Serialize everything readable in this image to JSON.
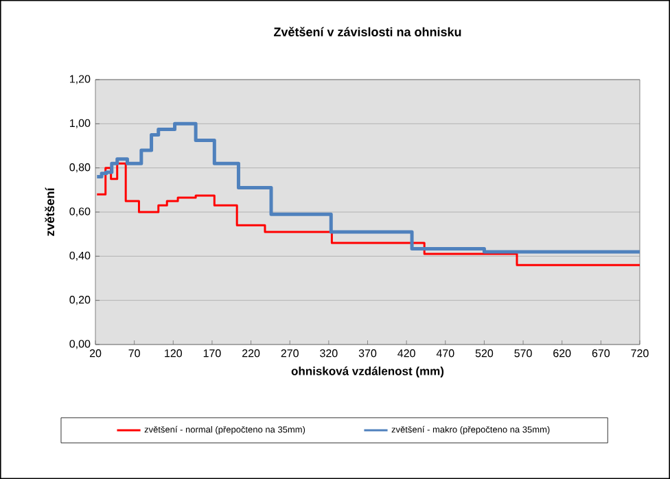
{
  "chart_data": {
    "type": "step",
    "title": "Zvětšení v závislosti na ohnisku",
    "xlabel": "ohnisková vzdálenost (mm)",
    "ylabel": "zvětšení",
    "xlim": [
      20,
      720
    ],
    "xticks": [
      20,
      70,
      120,
      170,
      220,
      270,
      320,
      370,
      420,
      470,
      520,
      570,
      620,
      670,
      720
    ],
    "ylim": [
      0,
      1.2
    ],
    "yticks": [
      {
        "value": 0,
        "label": "0,00"
      },
      {
        "value": 0.2,
        "label": "0,20"
      },
      {
        "value": 0.4,
        "label": "0,40"
      },
      {
        "value": 0.6,
        "label": "0,60"
      },
      {
        "value": 0.8,
        "label": "0,80"
      },
      {
        "value": 1.0,
        "label": "1,00"
      },
      {
        "value": 1.2,
        "label": "1,20"
      }
    ],
    "grid": "y",
    "legend": "bottom",
    "line_style": "solid",
    "marker": "none",
    "series": [
      {
        "name": "zvětšení - normal  (přepočteno  na 35mm)",
        "color": "#ff0000",
        "x": [
          22,
          33,
          40,
          48,
          59,
          76,
          101,
          112,
          126,
          149,
          173,
          202,
          238,
          324,
          443,
          562,
          720
        ],
        "values": [
          0.68,
          0.8,
          0.75,
          0.82,
          0.65,
          0.6,
          0.63,
          0.65,
          0.665,
          0.675,
          0.63,
          0.54,
          0.51,
          0.46,
          0.41,
          0.36,
          0.36
        ]
      },
      {
        "name": "zvětšení - makro (přepočteno  na 35mm)",
        "color": "#4f81bd",
        "x": [
          22,
          28,
          34,
          41,
          48,
          61,
          79,
          92,
          101,
          122,
          149,
          173,
          204,
          246,
          323,
          427,
          520,
          720
        ],
        "values": [
          0.76,
          0.775,
          0.78,
          0.82,
          0.84,
          0.82,
          0.88,
          0.95,
          0.975,
          1.0,
          0.925,
          0.82,
          0.71,
          0.59,
          0.51,
          0.434,
          0.42,
          0.42
        ]
      }
    ]
  }
}
